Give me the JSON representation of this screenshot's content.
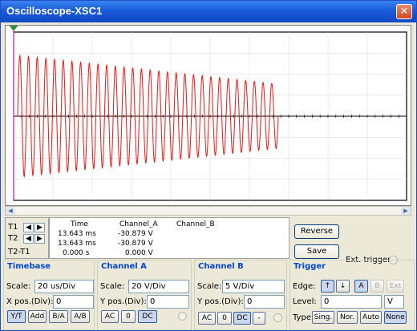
{
  "window": {
    "title": "Oscilloscope-XSC1",
    "close_label": "✕"
  },
  "scope": {
    "trace_color": "#e81818",
    "grid_color": "#000000",
    "cursor1_color": "#ff00ff"
  },
  "readout": {
    "t1_label": "T1",
    "t2_label": "T2",
    "t2t1_label": "T2-T1",
    "headers": {
      "time": "Time",
      "channel_a": "Channel_A",
      "channel_b": "Channel_B"
    },
    "rows": [
      {
        "time": "13.643 ms",
        "channel_a": "-30.879 V",
        "channel_b": ""
      },
      {
        "time": "13.643 ms",
        "channel_a": "-30.879 V",
        "channel_b": ""
      },
      {
        "time": "0.000 s",
        "channel_a": "0.000 V",
        "channel_b": ""
      }
    ]
  },
  "buttons": {
    "reverse": "Reverse",
    "save": "Save",
    "ext_trigger": "Ext. trigger"
  },
  "timebase": {
    "title": "Timebase",
    "scale_label": "Scale:",
    "scale_value": "20 us/Div",
    "xpos_label": "X pos.(Div):",
    "xpos_value": "0",
    "modes": [
      "Y/T",
      "Add",
      "B/A",
      "A/B"
    ]
  },
  "channel_a": {
    "title": "Channel A",
    "scale_label": "Scale:",
    "scale_value": "20  V/Div",
    "ypos_label": "Y pos.(Div):",
    "ypos_value": "0",
    "coupling": [
      "AC",
      "0",
      "DC"
    ]
  },
  "channel_b": {
    "title": "Channel B",
    "scale_label": "Scale:",
    "scale_value": "5  V/Div",
    "ypos_label": "Y pos.(Div):",
    "ypos_value": "0",
    "coupling": [
      "AC",
      "0",
      "DC",
      "-"
    ]
  },
  "trigger": {
    "title": "Trigger",
    "edge_label": "Edge:",
    "edge_rise": "↑",
    "edge_fall": "↓",
    "sources": [
      "A",
      "B",
      "Ext"
    ],
    "level_label": "Level:",
    "level_value": "0",
    "level_unit": "V",
    "type_label": "Type",
    "types": [
      "Sing.",
      "Nor.",
      "Auto",
      "None"
    ]
  }
}
